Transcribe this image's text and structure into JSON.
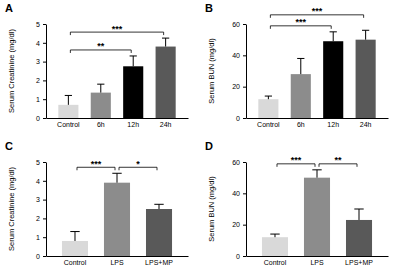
{
  "chart_data": [
    {
      "type": "bar",
      "title": "A",
      "y_label": "Serum Creatinine (mg/dl)",
      "categories": [
        "Control",
        "6h",
        "12h",
        "24h"
      ],
      "values": [
        0.7,
        1.35,
        2.75,
        3.8
      ],
      "errors": [
        0.5,
        0.45,
        0.55,
        0.45
      ],
      "colors": [
        "#d9d9d9",
        "#8c8c8c",
        "#000000",
        "#595959"
      ],
      "ylim": [
        0,
        5
      ],
      "yticks": [
        0,
        1,
        2,
        3,
        4,
        5
      ],
      "comparisons": [
        {
          "from": "Control",
          "to": "12h",
          "label": "**"
        },
        {
          "from": "Control",
          "to": "24h",
          "label": "***"
        }
      ]
    },
    {
      "type": "bar",
      "title": "B",
      "y_label": "Serum BUN (mg/dl)",
      "categories": [
        "Control",
        "6h",
        "12h",
        "24h"
      ],
      "values": [
        12,
        28,
        49,
        50
      ],
      "errors": [
        2,
        10,
        6,
        6
      ],
      "colors": [
        "#d9d9d9",
        "#8c8c8c",
        "#000000",
        "#595959"
      ],
      "ylim": [
        0,
        60
      ],
      "yticks": [
        0,
        20,
        40,
        60
      ],
      "comparisons": [
        {
          "from": "Control",
          "to": "12h",
          "label": "***"
        },
        {
          "from": "Control",
          "to": "24h",
          "label": "***"
        }
      ]
    },
    {
      "type": "bar",
      "title": "C",
      "y_label": "Serum Creatinine (mg/dl)",
      "categories": [
        "Control",
        "LPS",
        "LPS+MP"
      ],
      "values": [
        0.8,
        3.9,
        2.5
      ],
      "errors": [
        0.5,
        0.5,
        0.25
      ],
      "colors": [
        "#d9d9d9",
        "#8c8c8c",
        "#595959"
      ],
      "ylim": [
        0,
        5
      ],
      "yticks": [
        0,
        1,
        2,
        3,
        4,
        5
      ],
      "comparisons": [
        {
          "from": "Control",
          "to": "LPS",
          "label": "***"
        },
        {
          "from": "LPS",
          "to": "LPS+MP",
          "label": "*"
        }
      ]
    },
    {
      "type": "bar",
      "title": "D",
      "y_label": "Serum BUN (mg/dl)",
      "categories": [
        "Control",
        "LPS",
        "LPS+MP"
      ],
      "values": [
        12,
        50,
        23
      ],
      "errors": [
        2,
        5,
        7
      ],
      "colors": [
        "#d9d9d9",
        "#8c8c8c",
        "#595959"
      ],
      "ylim": [
        0,
        60
      ],
      "yticks": [
        0,
        20,
        40,
        60
      ],
      "comparisons": [
        {
          "from": "Control",
          "to": "LPS",
          "label": "***"
        },
        {
          "from": "LPS",
          "to": "LPS+MP",
          "label": "**"
        }
      ]
    }
  ]
}
